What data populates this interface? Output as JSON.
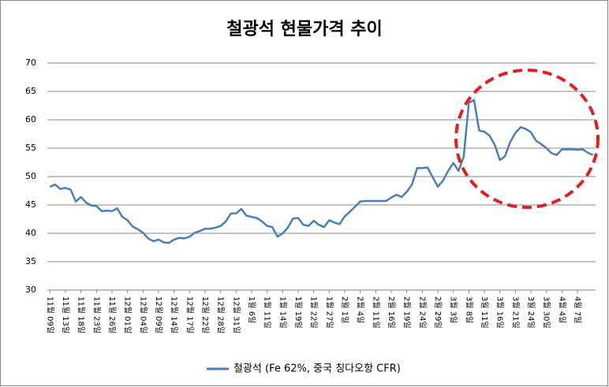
{
  "chart_data": {
    "type": "line",
    "title": "철광석 현물가격 추이",
    "categories": [
      "11월 09일",
      null,
      null,
      "11월 13일",
      null,
      null,
      "11월 18일",
      null,
      null,
      "11월 23일",
      null,
      null,
      "11월 26일",
      null,
      null,
      "12월 01일",
      null,
      null,
      "12월 04일",
      null,
      null,
      "12월 09일",
      null,
      null,
      "12월 14일",
      null,
      null,
      "12월 17일",
      null,
      null,
      "12월 22일",
      null,
      null,
      "12월 28일",
      null,
      null,
      "12월 31일",
      null,
      null,
      "1월 6일",
      null,
      null,
      "1월 11일",
      null,
      null,
      "1월 14일",
      null,
      null,
      "1월 19일",
      null,
      null,
      "1월 22일",
      null,
      null,
      "1월 27일",
      null,
      null,
      "2월 1일",
      null,
      null,
      "2월 4일",
      null,
      null,
      "2월 11일",
      null,
      null,
      "2월 16일",
      null,
      null,
      "2월 19일",
      null,
      null,
      "2월 24일",
      null,
      null,
      "2월 29일",
      null,
      null,
      "3월 3일",
      null,
      null,
      "3월 8일",
      null,
      null,
      "3월 11일",
      null,
      null,
      "3월 16일",
      null,
      null,
      "3월 21일",
      null,
      null,
      "3월 24일",
      null,
      null,
      "3월 30일",
      null,
      null,
      "4월 4일",
      null,
      null,
      "4월 7일",
      null,
      null,
      null
    ],
    "series": [
      {
        "name": "철광석 (Fe 62%, 중국 칭다오항 CFR)",
        "color": "#4a7ebb",
        "values": [
          48.2,
          48.6,
          47.8,
          48.0,
          47.7,
          45.6,
          46.4,
          45.4,
          44.9,
          44.8,
          43.9,
          44.0,
          43.9,
          44.4,
          42.9,
          42.3,
          41.2,
          40.7,
          40.1,
          39.1,
          38.6,
          38.9,
          38.4,
          38.3,
          38.9,
          39.2,
          39.1,
          39.4,
          40.1,
          40.4,
          40.8,
          40.8,
          41.0,
          41.3,
          42.1,
          43.5,
          43.5,
          44.3,
          43.1,
          42.9,
          42.7,
          42.1,
          41.3,
          41.1,
          39.4,
          40.0,
          41.0,
          42.6,
          42.7,
          41.5,
          41.3,
          42.2,
          41.5,
          41.1,
          42.3,
          41.9,
          41.6,
          43.0,
          43.8,
          44.7,
          45.6,
          45.7,
          45.7,
          45.7,
          45.7,
          45.7,
          46.3,
          46.8,
          46.4,
          47.3,
          48.6,
          51.5,
          51.5,
          51.6,
          49.9,
          48.2,
          49.3,
          51.0,
          52.4,
          51.0,
          53.5,
          63.0,
          63.5,
          58.1,
          57.9,
          57.2,
          55.6,
          52.9,
          53.6,
          56.1,
          57.7,
          58.7,
          58.4,
          57.8,
          56.3,
          55.7,
          55.0,
          54.1,
          53.8,
          54.8,
          54.8,
          54.8,
          54.7,
          54.8,
          54.2,
          53.8
        ]
      }
    ],
    "ylim": [
      30,
      70
    ],
    "yticks": [
      30,
      35,
      40,
      45,
      50,
      55,
      60,
      65,
      70
    ],
    "grid": true,
    "legend": "bottom"
  }
}
